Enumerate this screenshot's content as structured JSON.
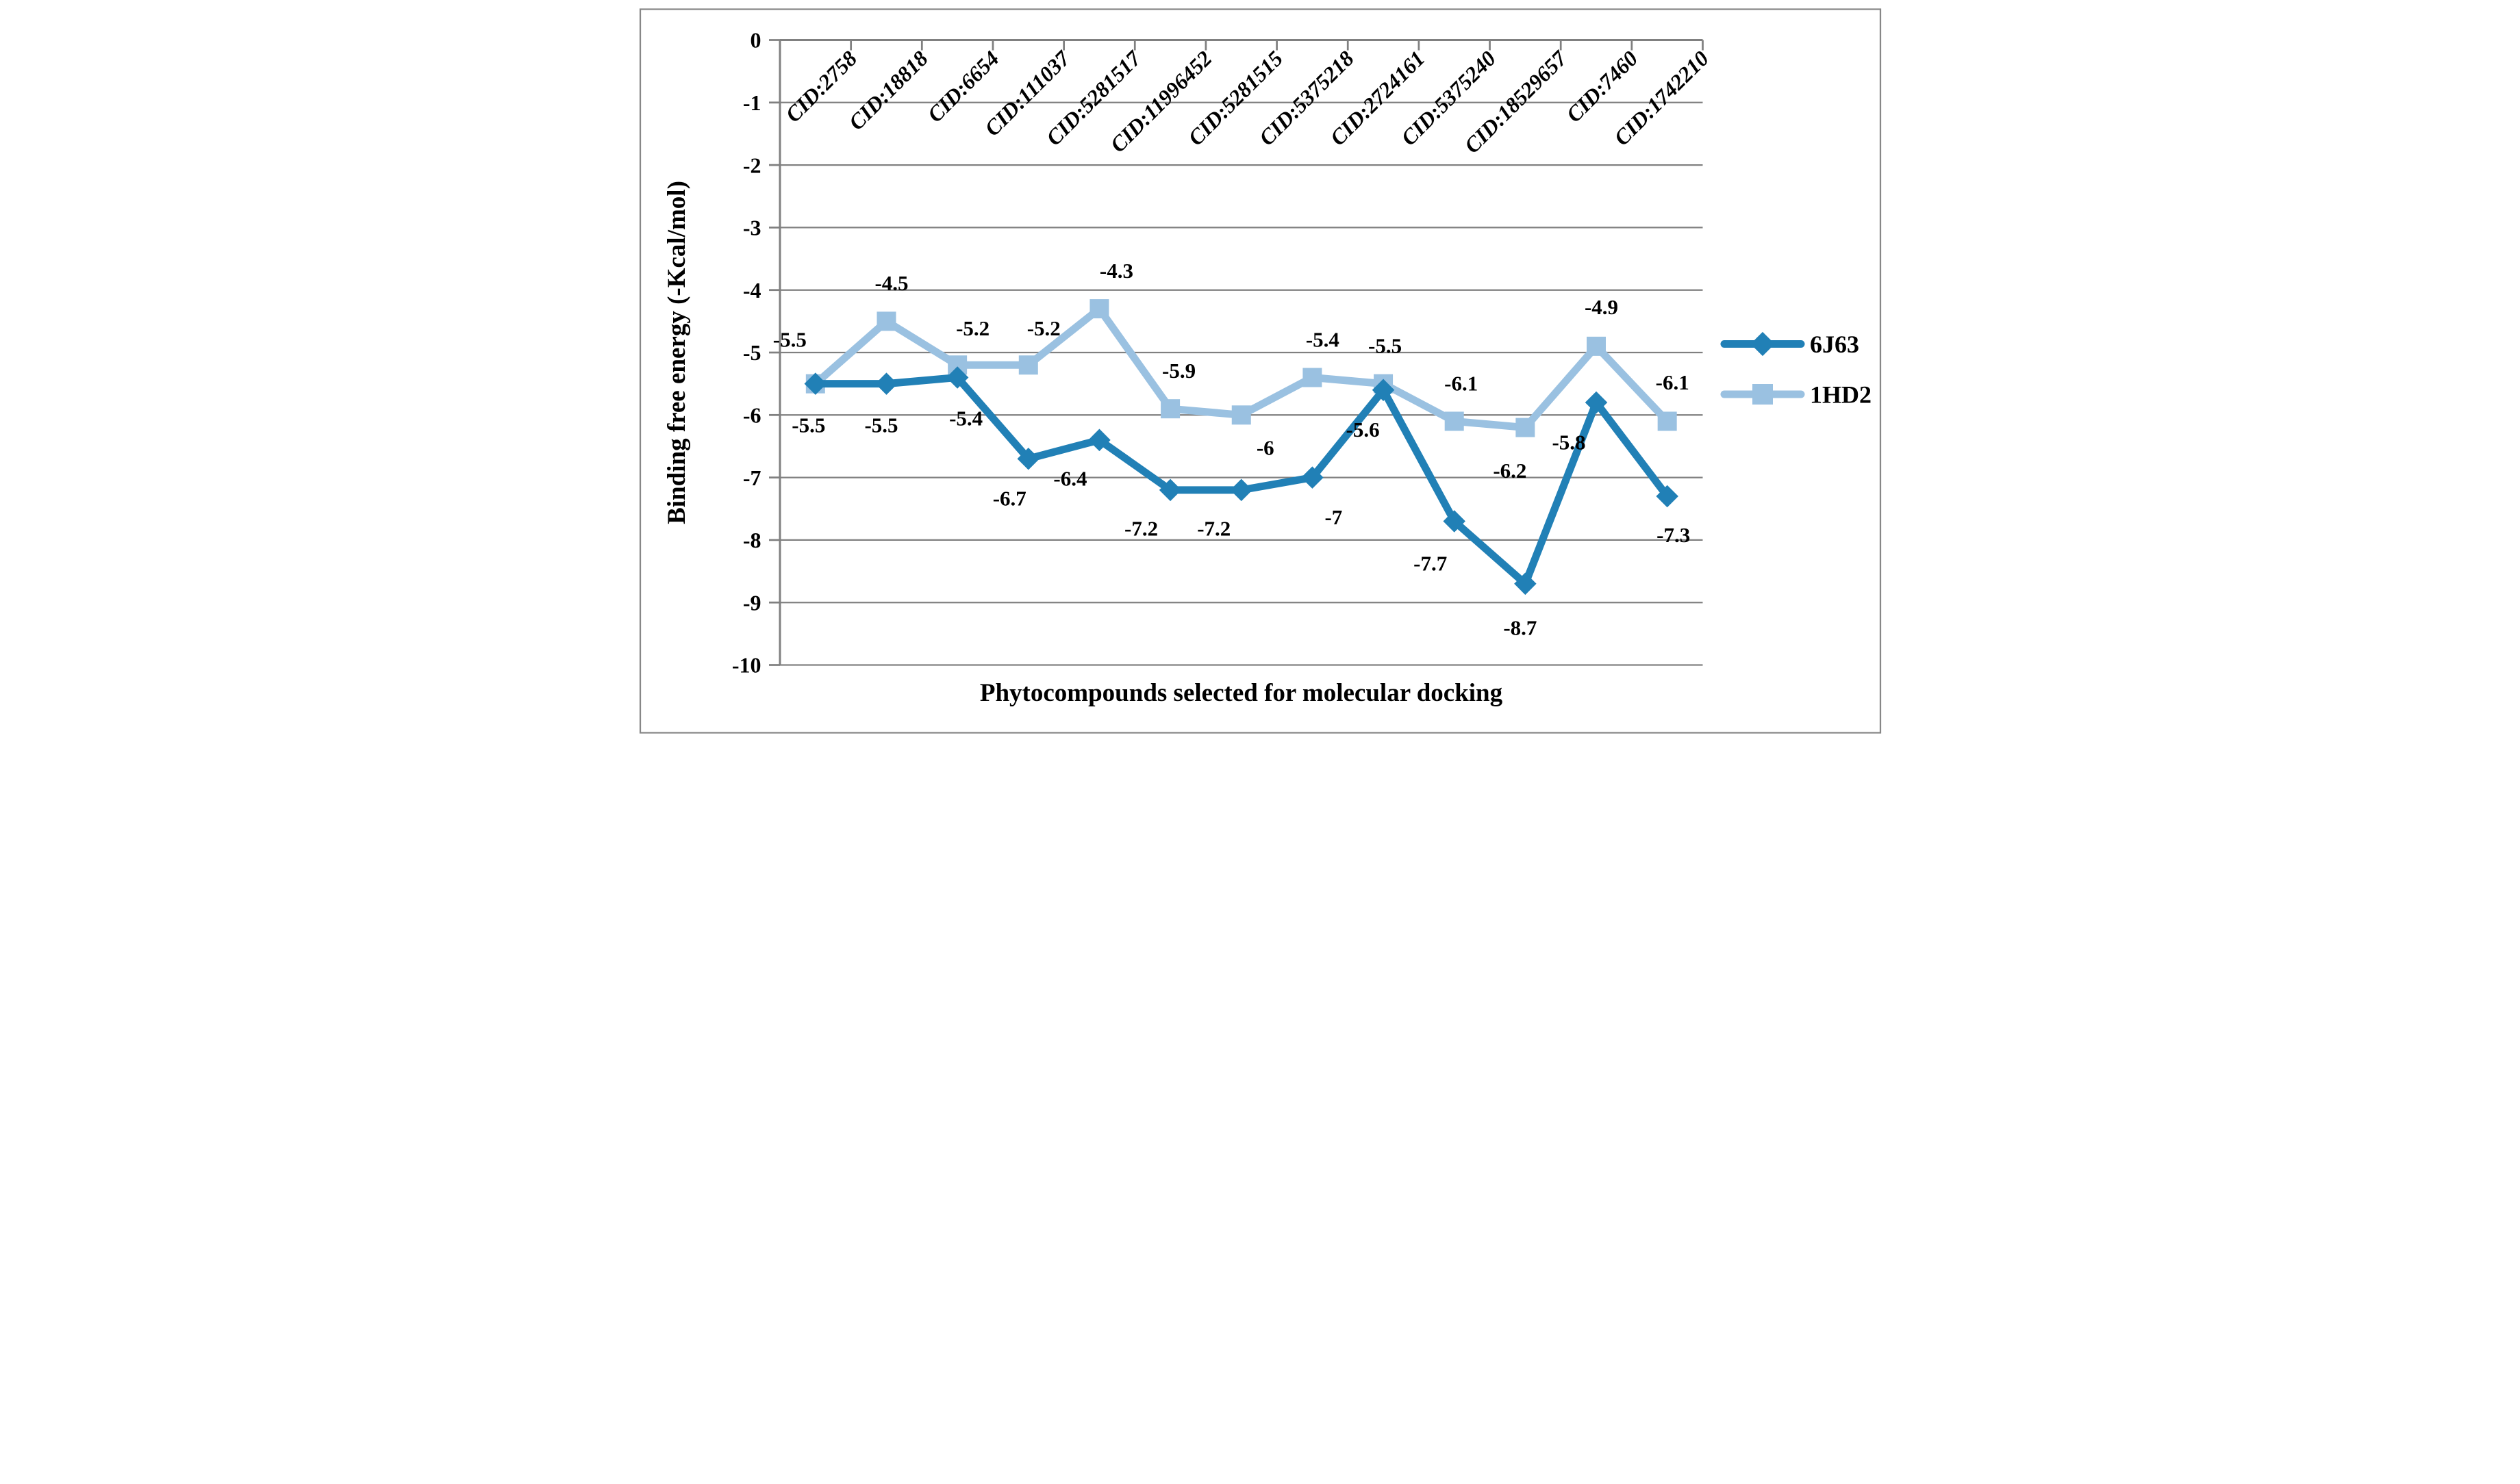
{
  "figure": {
    "background": "#ffffff",
    "border_color": "#878787"
  },
  "chart_data": {
    "type": "line",
    "title": "",
    "xlabel": "Phytocompounds selected for molecular docking",
    "ylabel": "Binding free energy (-Kcal/mol)",
    "ylim": [
      0,
      -10
    ],
    "y_tick_step": 1,
    "y_tick_labels": [
      "0",
      "-1",
      "-2",
      "-3",
      "-4",
      "-5",
      "-6",
      "-7",
      "-8",
      "-9",
      "-10"
    ],
    "grid": true,
    "grid_color": "#808080",
    "axis_color": "#808080",
    "legend_position": "right",
    "categories": [
      "CID:2758",
      "CID:18818",
      "CID:6654",
      "CID:111037",
      "CID:5281517",
      "CID:11996452",
      "CID:5281515",
      "CID:5375218",
      "CID:2724161",
      "CID:5375240",
      "CID:18529657",
      "CID:7460",
      "CID:1742210"
    ],
    "series": [
      {
        "name": "6J63",
        "color": "#2180B6",
        "marker": "diamond",
        "values": [
          -5.5,
          -5.5,
          -5.4,
          -6.7,
          -6.4,
          -7.2,
          -7.2,
          -7,
          -5.6,
          -7.7,
          -8.7,
          -5.8,
          -7.3
        ],
        "data_labels": [
          "-5.5",
          "-5.5",
          "-5.4",
          "-6.7",
          "-6.4",
          "-7.2",
          "-7.2",
          "-7",
          "-5.6",
          "-7.7",
          "-8.7",
          "-5.8",
          "-7.3"
        ],
        "label_offsets": [
          [
            -20,
            120
          ],
          [
            -15,
            120
          ],
          [
            25,
            118
          ],
          [
            -55,
            115
          ],
          [
            -85,
            112
          ],
          [
            -85,
            112
          ],
          [
            -80,
            112
          ],
          [
            62,
            115
          ],
          [
            -60,
            115
          ],
          [
            -70,
            122
          ],
          [
            -15,
            128
          ],
          [
            -80,
            115
          ],
          [
            18,
            112
          ]
        ]
      },
      {
        "name": "1HD2",
        "color": "#9AC1E1",
        "marker": "square",
        "values": [
          -5.5,
          -4.5,
          -5.2,
          -5.2,
          -4.3,
          -5.9,
          -6,
          -5.4,
          -5.5,
          -6.1,
          -6.2,
          -4.9,
          -6.1
        ],
        "data_labels": [
          "-5.5",
          "-4.5",
          "-5.2",
          "-5.2",
          "-4.3",
          "-5.9",
          "-6",
          "-5.4",
          "-5.5",
          "-6.1",
          "-6.2",
          "-4.9",
          "-6.1"
        ],
        "label_offsets": [
          [
            -75,
            -130
          ],
          [
            15,
            -112
          ],
          [
            45,
            -108
          ],
          [
            45,
            -108
          ],
          [
            50,
            -112
          ],
          [
            25,
            -112
          ],
          [
            70,
            95
          ],
          [
            30,
            -112
          ],
          [
            5,
            -112
          ],
          [
            20,
            -112
          ],
          [
            -45,
            125
          ],
          [
            15,
            -115
          ],
          [
            15,
            -115
          ]
        ]
      }
    ]
  }
}
